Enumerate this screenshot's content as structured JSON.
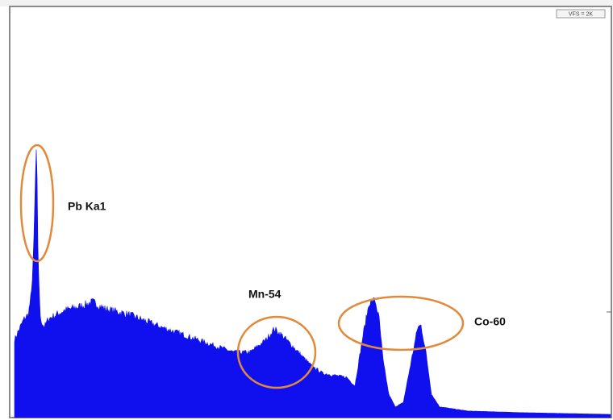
{
  "toolbar": {
    "vfs": "VFS = 2K"
  },
  "annotations": [
    {
      "label": "Pb Ka1"
    },
    {
      "label": "Mn-54"
    },
    {
      "label": "Co-60"
    }
  ]
}
